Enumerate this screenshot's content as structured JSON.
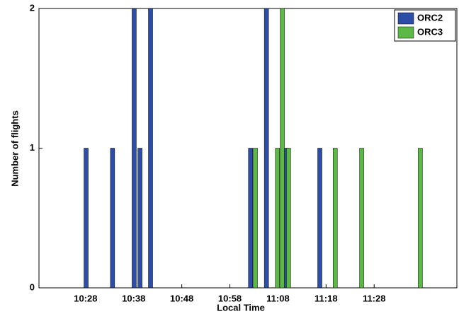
{
  "chart_data": {
    "type": "bar",
    "x_label": "Local Time",
    "y_label": "Number of flights",
    "xlim": [
      618.3,
      705.2
    ],
    "xticks": [
      {
        "value": 628,
        "label": "10:28"
      },
      {
        "value": 638,
        "label": "10:38"
      },
      {
        "value": 648,
        "label": "10:48"
      },
      {
        "value": 658,
        "label": "10:58"
      },
      {
        "value": 668,
        "label": "11:08"
      },
      {
        "value": 678,
        "label": "11:18"
      },
      {
        "value": 688,
        "label": "11:28"
      }
    ],
    "ylim": [
      0,
      2
    ],
    "yticks": [
      0,
      1,
      2
    ],
    "legend": "upper right",
    "series": [
      {
        "name": "ORC2",
        "color": "#2d4ea6",
        "x": [
          628.1,
          633.6,
          638.1,
          639.3,
          641.5,
          662.3,
          665.6,
          669.8,
          676.7
        ],
        "values": [
          1,
          1,
          2,
          1,
          2,
          1,
          2,
          1,
          1
        ]
      },
      {
        "name": "ORC3",
        "color": "#5cb946",
        "x": [
          663.3,
          667.9,
          668.9,
          670.2,
          679.9,
          685.4,
          697.6
        ],
        "values": [
          1,
          1,
          2,
          1,
          1,
          1,
          1
        ]
      }
    ]
  }
}
